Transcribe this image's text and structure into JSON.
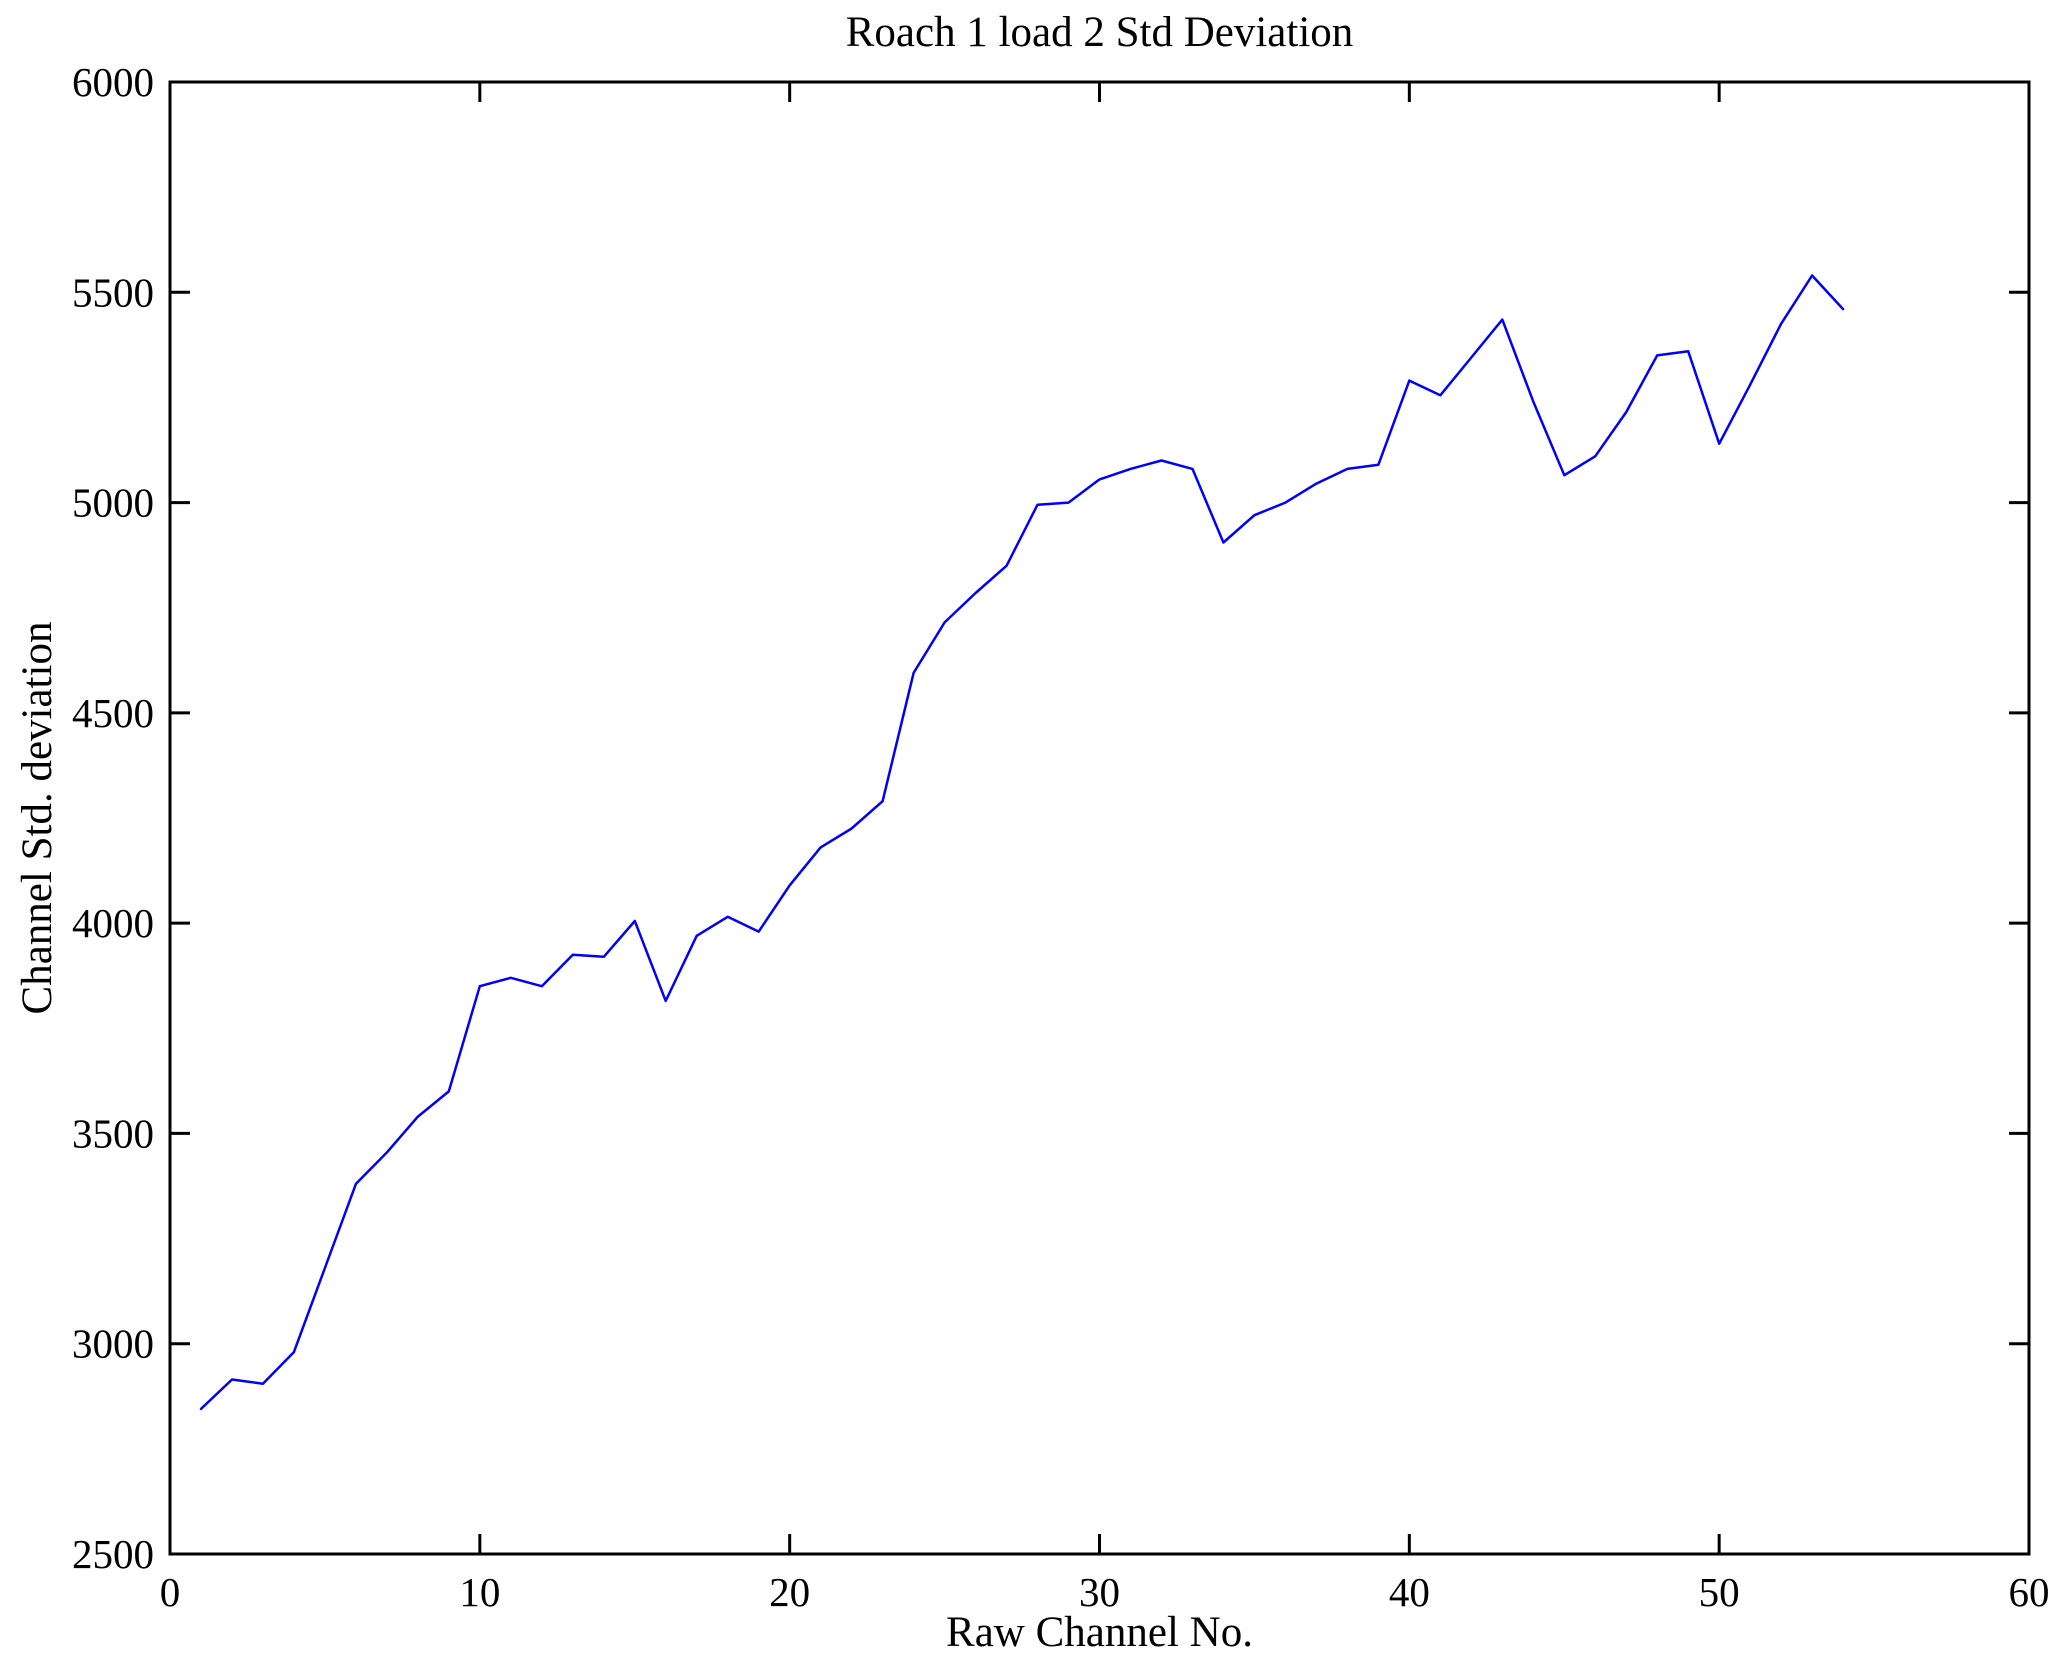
{
  "figure": {
    "title": "Roach 1 load 2 Std Deviation",
    "xlabel": "Raw Channel No.",
    "ylabel": "Channel Std. deviation"
  },
  "chart_data": {
    "type": "line",
    "title": "Roach 1 load 2 Std Deviation",
    "xlabel": "Raw Channel No.",
    "ylabel": "Channel Std. deviation",
    "xlim": [
      0,
      60
    ],
    "ylim": [
      2500,
      6000
    ],
    "xticks": [
      0,
      10,
      20,
      30,
      40,
      50,
      60
    ],
    "yticks": [
      2500,
      3000,
      3500,
      4000,
      4500,
      5000,
      5500,
      6000
    ],
    "grid": false,
    "legend_position": "none",
    "line_color": "#0000ff",
    "axis_color": "#000000",
    "background_color": "#ffffff",
    "series": [
      {
        "x": [
          1,
          2,
          3,
          4,
          5,
          6,
          7,
          8,
          9,
          10,
          11,
          12,
          13,
          14,
          15,
          16,
          17,
          18,
          19,
          20,
          21,
          22,
          23,
          24,
          25,
          26,
          27,
          28,
          29,
          30,
          31,
          32,
          33,
          34,
          35,
          36,
          37,
          38,
          39,
          40,
          41,
          42,
          43,
          44,
          45,
          46,
          47,
          48,
          49,
          50,
          51,
          52,
          53,
          54
        ],
        "y": [
          2845,
          2915,
          2905,
          2980,
          3180,
          3380,
          3455,
          3540,
          3600,
          3850,
          3870,
          3850,
          3925,
          3920,
          4005,
          3815,
          3970,
          4015,
          3980,
          4090,
          4180,
          4225,
          4290,
          4595,
          4715,
          4785,
          4850,
          4995,
          5000,
          5055,
          5080,
          5100,
          5080,
          4905,
          4970,
          5000,
          5045,
          5080,
          5090,
          5290,
          5255,
          5345,
          5435,
          5240,
          5065,
          5110,
          5215,
          5350,
          5360,
          5140,
          5280,
          5425,
          5540,
          5460
        ]
      }
    ]
  }
}
